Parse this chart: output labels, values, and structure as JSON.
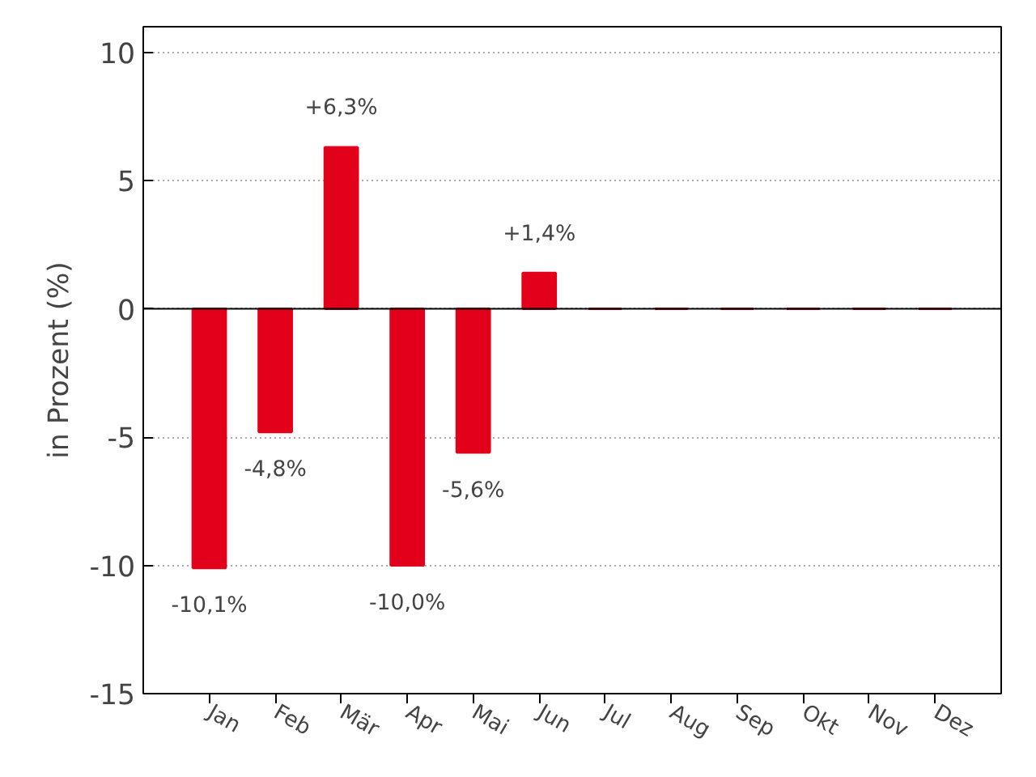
{
  "chart_data": {
    "type": "bar",
    "ylabel": "in Prozent (%)",
    "categories": [
      "Jan",
      "Feb",
      "Mär",
      "Apr",
      "Mai",
      "Jun",
      "Jul",
      "Aug",
      "Sep",
      "Okt",
      "Nov",
      "Dez"
    ],
    "values": [
      -10.1,
      -4.8,
      6.3,
      -10.0,
      -5.6,
      1.4,
      0,
      0,
      0,
      0,
      0,
      0
    ],
    "value_labels": [
      "-10,1%",
      "-4,8%",
      "+6,3%",
      "-10,0%",
      "-5,6%",
      "+1,4%",
      null,
      null,
      null,
      null,
      null,
      null
    ],
    "color": "#e3001b",
    "ylim": [
      -15,
      11
    ],
    "yticks": [
      -15,
      -10,
      -5,
      0,
      5,
      10
    ],
    "grid": "y",
    "ref_lines": [
      {
        "axis": "y",
        "value": 0,
        "label": null,
        "color": "#000000"
      }
    ]
  }
}
